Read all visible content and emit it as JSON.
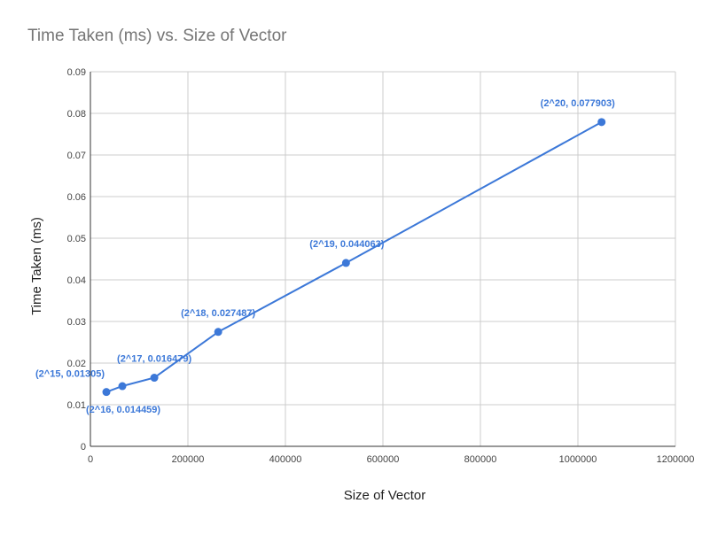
{
  "chart_data": {
    "type": "line",
    "title": "Time Taken (ms) vs. Size of Vector",
    "xlabel": "Size of Vector",
    "ylabel": "Time Taken (ms)",
    "xlim": [
      0,
      1200000
    ],
    "ylim": [
      0,
      0.09
    ],
    "x_ticks": [
      "0",
      "200000",
      "400000",
      "600000",
      "800000",
      "1000000",
      "1200000"
    ],
    "y_ticks": [
      "0",
      "0.01",
      "0.02",
      "0.03",
      "0.04",
      "0.05",
      "0.06",
      "0.07",
      "0.08",
      "0.09"
    ],
    "grid": true,
    "series": [
      {
        "x": [
          32768,
          65536,
          131072,
          262144,
          524288,
          1048576
        ],
        "values": [
          0.01305,
          0.014459,
          0.016479,
          0.027487,
          0.044063,
          0.077903
        ],
        "labels": [
          "(2^15, 0.01305)",
          "(2^16, 0.014459)",
          "(2^17, 0.016479)",
          "(2^18, 0.027487)",
          "(2^19, 0.044063)",
          "(2^20, 0.077903)"
        ],
        "color": "#3c78d8"
      }
    ],
    "colors": {
      "title": "#757575",
      "axis_text": "#222222",
      "tick_text": "#444444",
      "grid": "#cccccc",
      "axis_line": "#333333"
    }
  }
}
